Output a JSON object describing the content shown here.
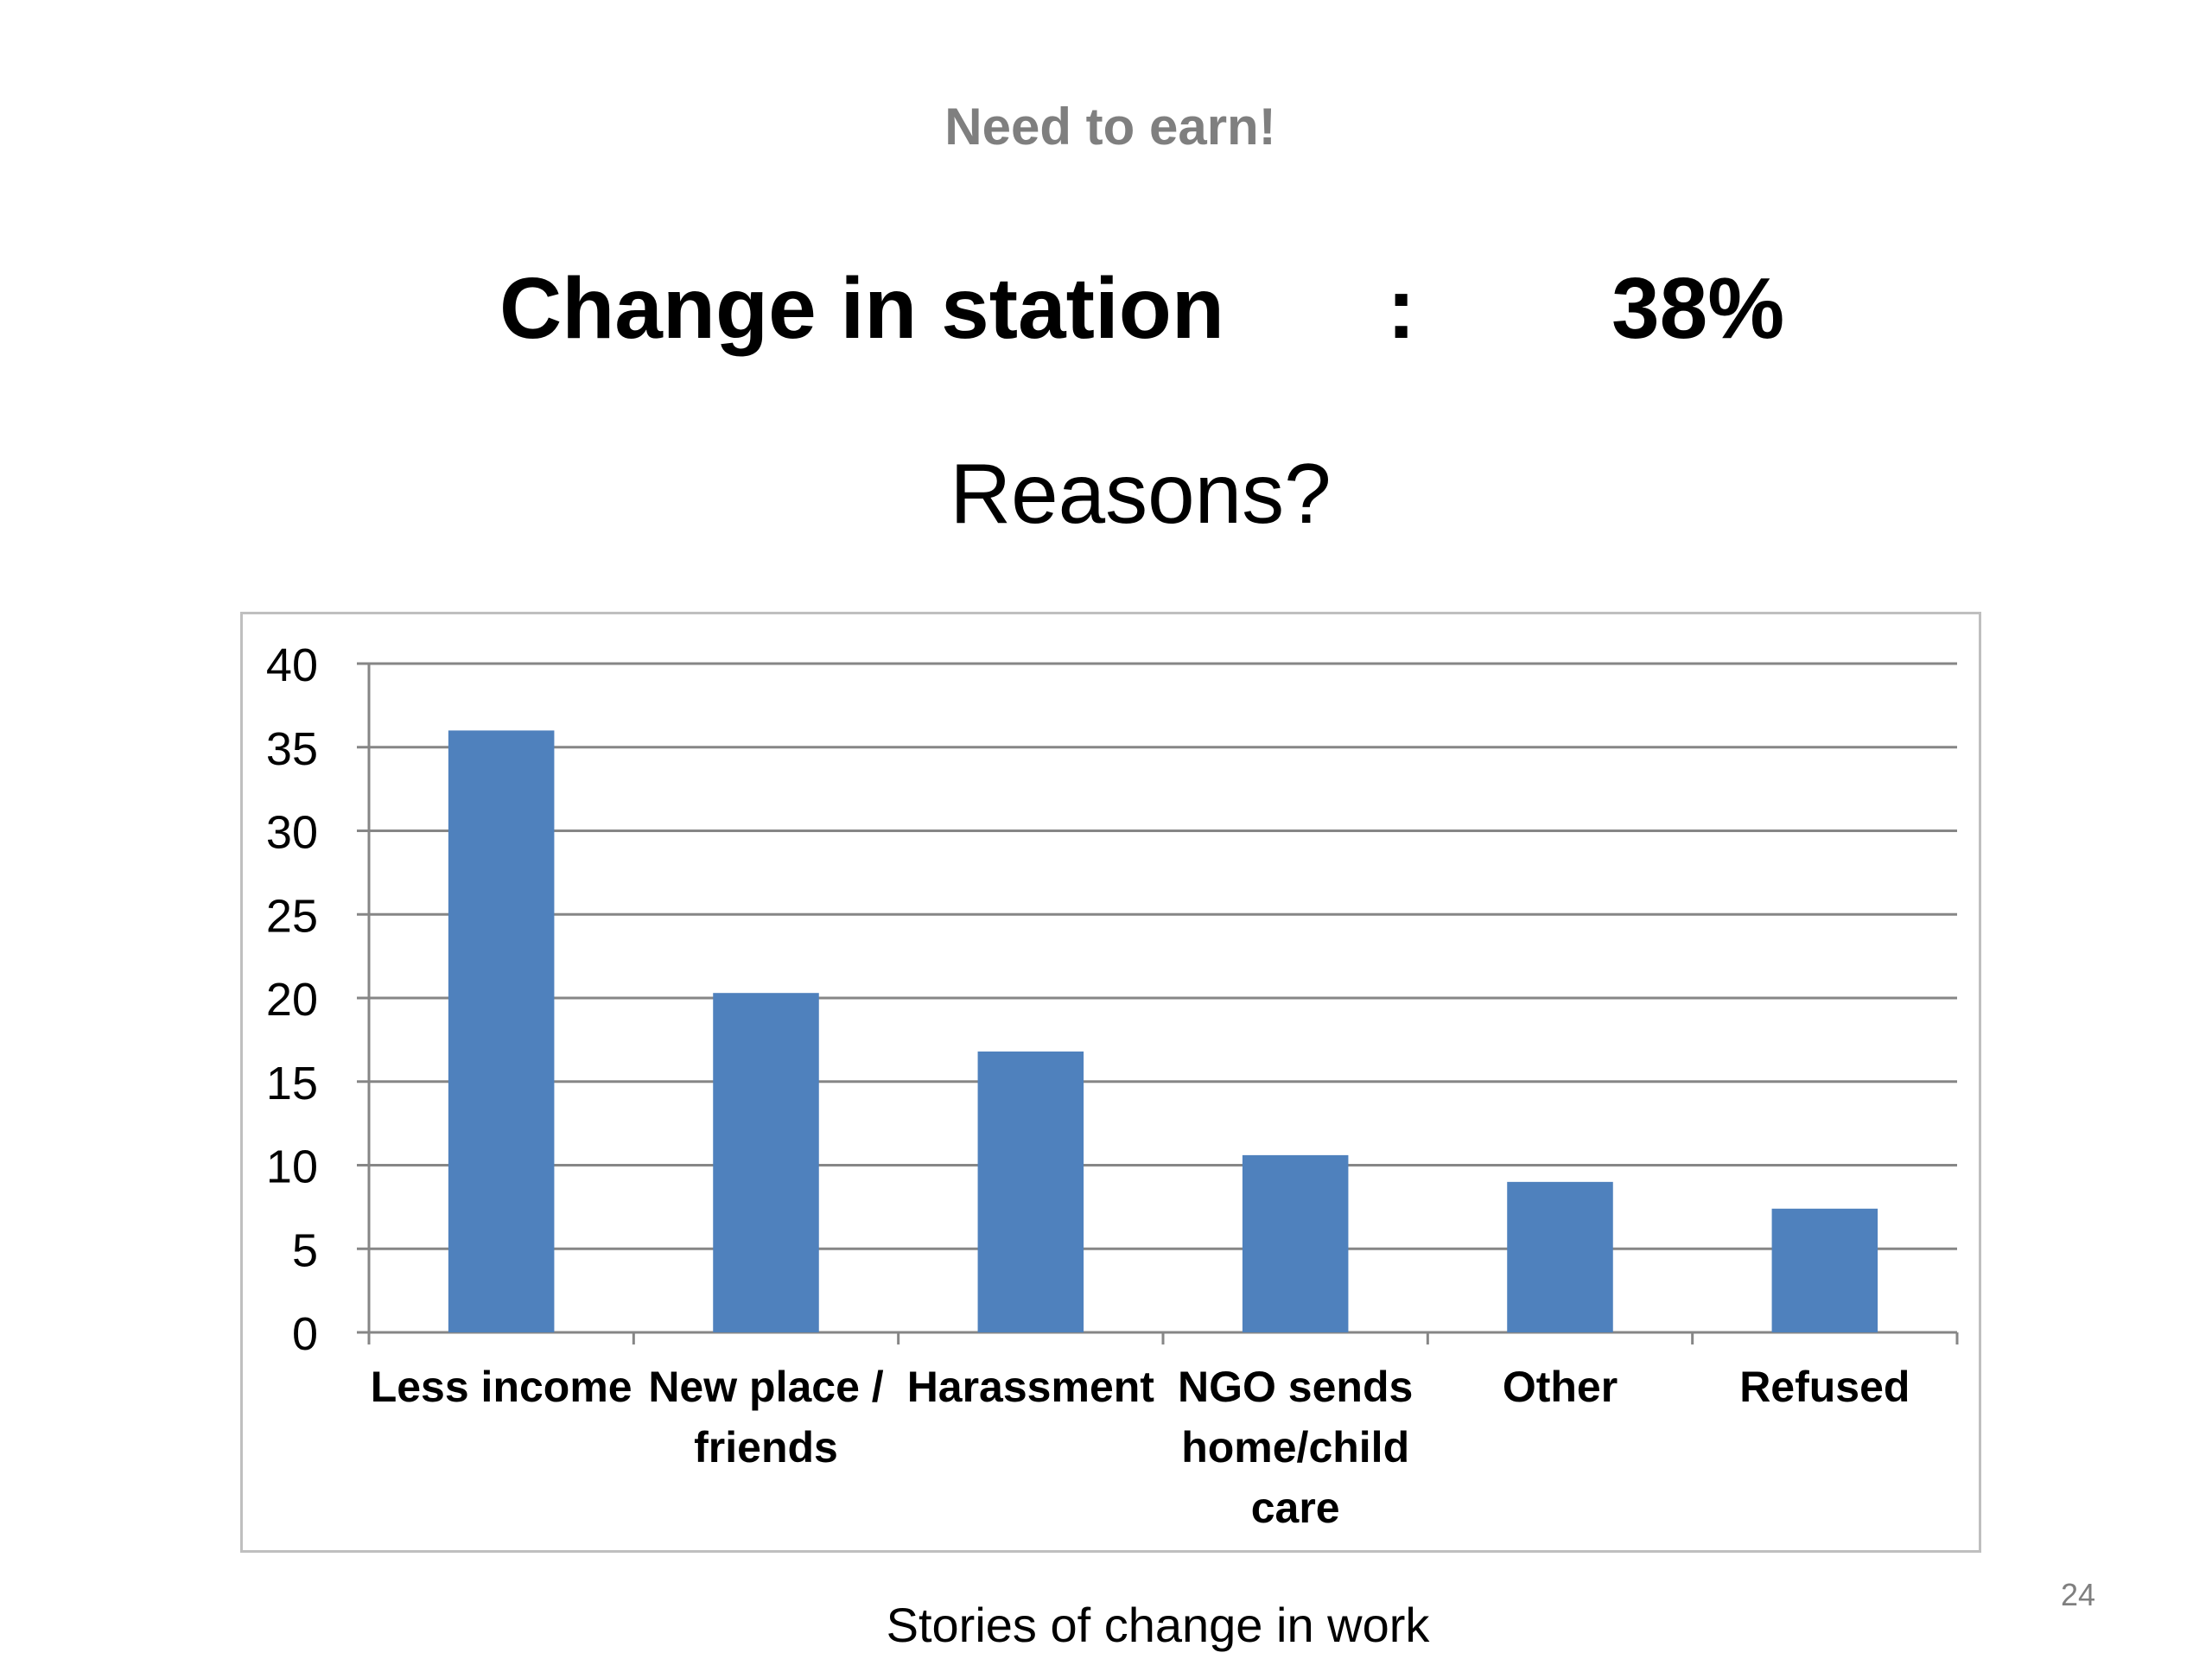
{
  "slide": {
    "subtitle": "Need to earn!",
    "headline_label": "Change in station",
    "headline_colon": ":",
    "headline_value": "38%",
    "question": "Reasons?",
    "footer": "Stories of change in work",
    "page_number": "24"
  },
  "chart_data": {
    "type": "bar",
    "title": "",
    "xlabel": "",
    "ylabel": "",
    "categories": [
      [
        "Less income"
      ],
      [
        "New place /",
        "friends"
      ],
      [
        "Harassment"
      ],
      [
        "NGO sends",
        "home/child",
        "care"
      ],
      [
        "Other"
      ],
      [
        "Refused"
      ]
    ],
    "values": [
      36,
      20.3,
      16.8,
      10.6,
      9,
      7.4
    ],
    "ylim": [
      0,
      40
    ],
    "yticks": [
      0,
      5,
      10,
      15,
      20,
      25,
      30,
      35,
      40
    ],
    "grid": true,
    "legend": "none",
    "bar_color": "#4f81bd",
    "grid_color": "#868686"
  }
}
